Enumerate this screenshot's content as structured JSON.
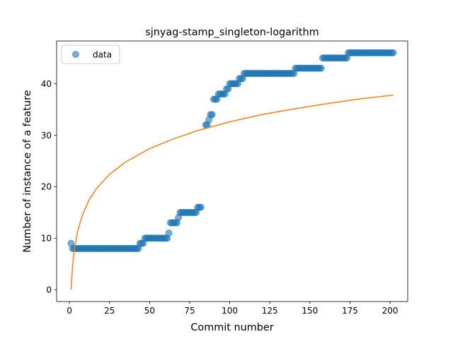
{
  "chart_data": {
    "type": "scatter",
    "title": "sjnyag-stamp_singleton-logarithm",
    "xlabel": "Commit number",
    "ylabel": "Number of instance of a feature",
    "xlim": [
      -8,
      211
    ],
    "ylim": [
      -2.3,
      48.3
    ],
    "xticks": [
      0,
      25,
      50,
      75,
      100,
      125,
      150,
      175,
      200
    ],
    "yticks": [
      0,
      10,
      20,
      30,
      40
    ],
    "grid": false,
    "legend": {
      "position": "top-left",
      "entries": [
        "data"
      ]
    },
    "colors": {
      "data": "#1f77b4",
      "fit": "#ff7f0e"
    },
    "series": [
      {
        "name": "data",
        "kind": "scatter",
        "points": [
          [
            1,
            9
          ],
          [
            2,
            8
          ],
          [
            3,
            8
          ],
          [
            4,
            8
          ],
          [
            5,
            8
          ],
          [
            6,
            8
          ],
          [
            7,
            8
          ],
          [
            8,
            8
          ],
          [
            9,
            8
          ],
          [
            10,
            8
          ],
          [
            11,
            8
          ],
          [
            12,
            8
          ],
          [
            13,
            8
          ],
          [
            14,
            8
          ],
          [
            15,
            8
          ],
          [
            16,
            8
          ],
          [
            17,
            8
          ],
          [
            18,
            8
          ],
          [
            19,
            8
          ],
          [
            20,
            8
          ],
          [
            21,
            8
          ],
          [
            22,
            8
          ],
          [
            23,
            8
          ],
          [
            24,
            8
          ],
          [
            25,
            8
          ],
          [
            26,
            8
          ],
          [
            27,
            8
          ],
          [
            28,
            8
          ],
          [
            29,
            8
          ],
          [
            30,
            8
          ],
          [
            31,
            8
          ],
          [
            32,
            8
          ],
          [
            33,
            8
          ],
          [
            34,
            8
          ],
          [
            35,
            8
          ],
          [
            36,
            8
          ],
          [
            37,
            8
          ],
          [
            38,
            8
          ],
          [
            39,
            8
          ],
          [
            40,
            8
          ],
          [
            41,
            8
          ],
          [
            42,
            8
          ],
          [
            43,
            8
          ],
          [
            44,
            9
          ],
          [
            45,
            9
          ],
          [
            46,
            9
          ],
          [
            47,
            10
          ],
          [
            48,
            10
          ],
          [
            49,
            10
          ],
          [
            50,
            10
          ],
          [
            51,
            10
          ],
          [
            52,
            10
          ],
          [
            53,
            10
          ],
          [
            54,
            10
          ],
          [
            55,
            10
          ],
          [
            56,
            10
          ],
          [
            57,
            10
          ],
          [
            58,
            10
          ],
          [
            59,
            10
          ],
          [
            60,
            10
          ],
          [
            61,
            10
          ],
          [
            62,
            11
          ],
          [
            63,
            13
          ],
          [
            64,
            13
          ],
          [
            65,
            13
          ],
          [
            66,
            13
          ],
          [
            67,
            13
          ],
          [
            68,
            14
          ],
          [
            69,
            15
          ],
          [
            70,
            15
          ],
          [
            71,
            15
          ],
          [
            72,
            15
          ],
          [
            73,
            15
          ],
          [
            74,
            15
          ],
          [
            75,
            15
          ],
          [
            76,
            15
          ],
          [
            77,
            15
          ],
          [
            78,
            15
          ],
          [
            79,
            15
          ],
          [
            80,
            16
          ],
          [
            81,
            16
          ],
          [
            82,
            16
          ],
          [
            85,
            32
          ],
          [
            86,
            32
          ],
          [
            87,
            33
          ],
          [
            88,
            34
          ],
          [
            89,
            34
          ],
          [
            90,
            37
          ],
          [
            91,
            37
          ],
          [
            92,
            37
          ],
          [
            93,
            38
          ],
          [
            94,
            38
          ],
          [
            95,
            38
          ],
          [
            96,
            38
          ],
          [
            97,
            38
          ],
          [
            98,
            39
          ],
          [
            99,
            39
          ],
          [
            100,
            40
          ],
          [
            101,
            40
          ],
          [
            102,
            40
          ],
          [
            103,
            40
          ],
          [
            104,
            40
          ],
          [
            105,
            40
          ],
          [
            106,
            41
          ],
          [
            107,
            41
          ],
          [
            108,
            41
          ],
          [
            109,
            42
          ],
          [
            110,
            42
          ],
          [
            111,
            42
          ],
          [
            112,
            42
          ],
          [
            113,
            42
          ],
          [
            114,
            42
          ],
          [
            115,
            42
          ],
          [
            116,
            42
          ],
          [
            117,
            42
          ],
          [
            118,
            42
          ],
          [
            119,
            42
          ],
          [
            120,
            42
          ],
          [
            121,
            42
          ],
          [
            122,
            42
          ],
          [
            123,
            42
          ],
          [
            124,
            42
          ],
          [
            125,
            42
          ],
          [
            126,
            42
          ],
          [
            127,
            42
          ],
          [
            128,
            42
          ],
          [
            129,
            42
          ],
          [
            130,
            42
          ],
          [
            131,
            42
          ],
          [
            132,
            42
          ],
          [
            133,
            42
          ],
          [
            134,
            42
          ],
          [
            135,
            42
          ],
          [
            136,
            42
          ],
          [
            137,
            42
          ],
          [
            138,
            42
          ],
          [
            139,
            42
          ],
          [
            140,
            42
          ],
          [
            141,
            43
          ],
          [
            142,
            43
          ],
          [
            143,
            43
          ],
          [
            144,
            43
          ],
          [
            145,
            43
          ],
          [
            146,
            43
          ],
          [
            147,
            43
          ],
          [
            148,
            43
          ],
          [
            149,
            43
          ],
          [
            150,
            43
          ],
          [
            151,
            43
          ],
          [
            152,
            43
          ],
          [
            153,
            43
          ],
          [
            154,
            43
          ],
          [
            155,
            43
          ],
          [
            156,
            43
          ],
          [
            157,
            43
          ],
          [
            158,
            45
          ],
          [
            159,
            45
          ],
          [
            160,
            45
          ],
          [
            161,
            45
          ],
          [
            162,
            45
          ],
          [
            163,
            45
          ],
          [
            164,
            45
          ],
          [
            165,
            45
          ],
          [
            166,
            45
          ],
          [
            167,
            45
          ],
          [
            168,
            45
          ],
          [
            169,
            45
          ],
          [
            170,
            45
          ],
          [
            171,
            45
          ],
          [
            172,
            45
          ],
          [
            173,
            45
          ],
          [
            174,
            46
          ],
          [
            175,
            46
          ],
          [
            176,
            46
          ],
          [
            177,
            46
          ],
          [
            178,
            46
          ],
          [
            179,
            46
          ],
          [
            180,
            46
          ],
          [
            181,
            46
          ],
          [
            182,
            46
          ],
          [
            183,
            46
          ],
          [
            184,
            46
          ],
          [
            185,
            46
          ],
          [
            186,
            46
          ],
          [
            187,
            46
          ],
          [
            188,
            46
          ],
          [
            189,
            46
          ],
          [
            190,
            46
          ],
          [
            191,
            46
          ],
          [
            192,
            46
          ],
          [
            193,
            46
          ],
          [
            194,
            46
          ],
          [
            195,
            46
          ],
          [
            196,
            46
          ],
          [
            197,
            46
          ],
          [
            198,
            46
          ],
          [
            199,
            46
          ],
          [
            200,
            46
          ],
          [
            201,
            46
          ],
          [
            202,
            46
          ]
        ]
      },
      {
        "kind": "line",
        "points": [
          [
            1,
            0
          ],
          [
            2,
            4.8
          ],
          [
            3,
            7.7
          ],
          [
            5,
            11.2
          ],
          [
            8,
            14.4
          ],
          [
            12,
            17.3
          ],
          [
            17,
            19.7
          ],
          [
            25,
            22.4
          ],
          [
            35,
            24.8
          ],
          [
            50,
            27.4
          ],
          [
            65,
            29.3
          ],
          [
            80,
            30.9
          ],
          [
            100,
            32.6
          ],
          [
            120,
            34.0
          ],
          [
            140,
            35.1
          ],
          [
            160,
            36.1
          ],
          [
            180,
            37.0
          ],
          [
            202,
            37.8
          ]
        ]
      }
    ]
  }
}
